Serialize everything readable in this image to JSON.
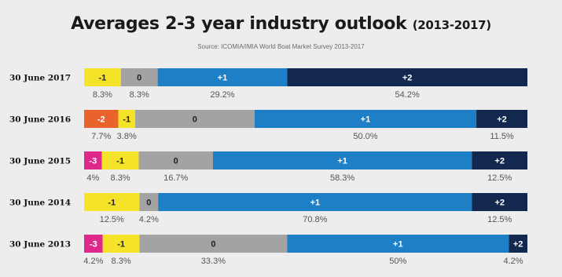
{
  "header": {
    "title": "Averages 2-3 year industry outlook",
    "title_range": "(2013-2017)",
    "source": "Source: ICOMIA/IMIA World Boat Market Survey 2013-2017"
  },
  "colors": {
    "-2": "#e8642c",
    "-3": "#e0278c",
    "-1": "#f5e32a",
    "0": "#a3a3a3",
    "+1": "#1e7fc6",
    "+2": "#13284f"
  },
  "chart_data": {
    "type": "bar",
    "orientation": "horizontal",
    "stacked": true,
    "title": "Averages 2-3 year industry outlook (2013-2017)",
    "categories": [
      "30 June 2017",
      "30 June 2016",
      "30 June 2015",
      "30 June 2014",
      "30 June 2013"
    ],
    "rows": [
      {
        "label": "30 June 2017",
        "segments": [
          {
            "key": "-1",
            "label": "-1",
            "value": 8.3,
            "pct": "8.3%"
          },
          {
            "key": "0",
            "label": "0",
            "value": 8.3,
            "pct": "8.3%"
          },
          {
            "key": "+1",
            "label": "+1",
            "value": 29.2,
            "pct": "29.2%"
          },
          {
            "key": "+2",
            "label": "+2",
            "value": 54.2,
            "pct": "54.2%"
          }
        ]
      },
      {
        "label": "30 June 2016",
        "segments": [
          {
            "key": "-2",
            "label": "-2",
            "value": 7.7,
            "pct": "7.7%"
          },
          {
            "key": "-1",
            "label": "-1",
            "value": 3.8,
            "pct": "3.8%"
          },
          {
            "key": "0",
            "label": "0",
            "value": 26.9,
            "pct": ""
          },
          {
            "key": "+1",
            "label": "+1",
            "value": 50.0,
            "pct": "50.0%"
          },
          {
            "key": "+2",
            "label": "+2",
            "value": 11.5,
            "pct": "11.5%"
          }
        ]
      },
      {
        "label": "30 June 2015",
        "segments": [
          {
            "key": "-3",
            "label": "-3",
            "value": 4,
            "pct": "4%"
          },
          {
            "key": "-1",
            "label": "-1",
            "value": 8.3,
            "pct": "8.3%"
          },
          {
            "key": "0",
            "label": "0",
            "value": 16.7,
            "pct": "16.7%"
          },
          {
            "key": "+1",
            "label": "+1",
            "value": 58.3,
            "pct": "58.3%"
          },
          {
            "key": "+2",
            "label": "+2",
            "value": 12.5,
            "pct": "12.5%"
          }
        ]
      },
      {
        "label": "30 June 2014",
        "segments": [
          {
            "key": "-1",
            "label": "-1",
            "value": 12.5,
            "pct": "12.5%"
          },
          {
            "key": "0",
            "label": "0",
            "value": 4.2,
            "pct": "4.2%"
          },
          {
            "key": "+1",
            "label": "+1",
            "value": 70.8,
            "pct": "70.8%"
          },
          {
            "key": "+2",
            "label": "+2",
            "value": 12.5,
            "pct": "12.5%"
          }
        ]
      },
      {
        "label": "30 June 2013",
        "segments": [
          {
            "key": "-3",
            "label": "-3",
            "value": 4.2,
            "pct": "4.2%"
          },
          {
            "key": "-1",
            "label": "-1",
            "value": 8.3,
            "pct": "8.3%"
          },
          {
            "key": "0",
            "label": "0",
            "value": 33.3,
            "pct": "33.3%"
          },
          {
            "key": "+1",
            "label": "+1",
            "value": 50,
            "pct": "50%"
          },
          {
            "key": "+2",
            "label": "+2",
            "value": 4.2,
            "pct": "4.2%"
          }
        ]
      }
    ]
  }
}
